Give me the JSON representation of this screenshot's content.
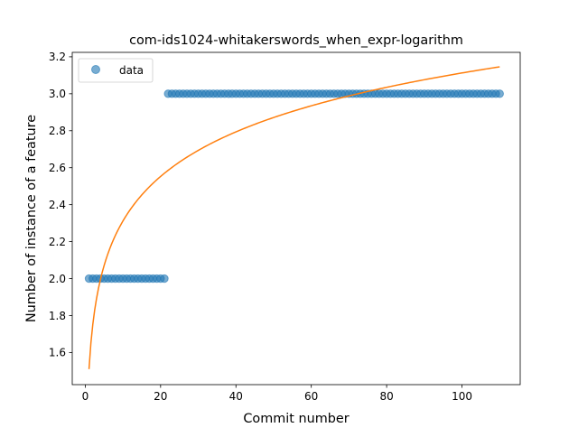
{
  "chart_data": {
    "type": "scatter",
    "title": "com-ids1024-whitakerswords_when_expr-logarithm",
    "xlabel": "Commit number",
    "ylabel": "Number of instance of a feature",
    "xlim": [
      -3.45,
      115.45
    ],
    "ylim": [
      1.426,
      3.224
    ],
    "xticks": [
      0,
      20,
      40,
      60,
      80,
      100
    ],
    "yticks": [
      1.6,
      1.8,
      2.0,
      2.2,
      2.4,
      2.6,
      2.8,
      3.0,
      3.2
    ],
    "xtick_labels": [
      "0",
      "20",
      "40",
      "60",
      "80",
      "100"
    ],
    "ytick_labels": [
      "1.6",
      "1.8",
      "2.0",
      "2.2",
      "2.4",
      "2.6",
      "2.8",
      "3.0",
      "3.2"
    ],
    "grid": false,
    "legend": {
      "placement": "upper-left",
      "entries": [
        "data"
      ]
    },
    "series": [
      {
        "name": "data",
        "kind": "scatter",
        "color": "#1f77b4",
        "alpha": 0.6,
        "segments": [
          {
            "x_start": 1,
            "x_end": 21,
            "y": 2.0
          },
          {
            "x_start": 22,
            "x_end": 110,
            "y": 3.0
          }
        ]
      },
      {
        "kind": "line",
        "color": "#ff7f0e",
        "fit": {
          "form": "a + b*ln(x)",
          "a": 1.51,
          "b": 0.348
        },
        "x_range": [
          1,
          110
        ]
      }
    ]
  }
}
